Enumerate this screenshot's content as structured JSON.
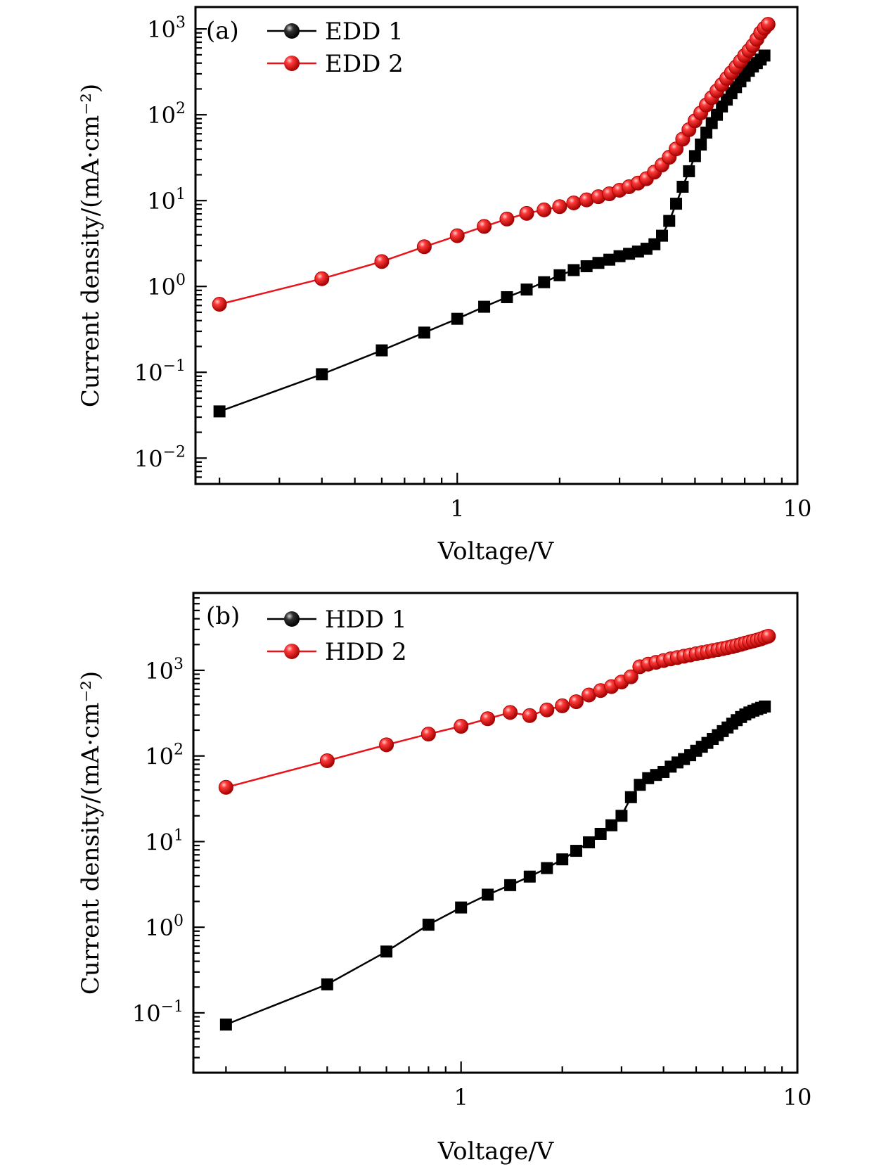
{
  "chart_data": [
    {
      "type": "line",
      "panel_label": "(a)",
      "xlabel": "Voltage/V",
      "ylabel": "Current density/(mA·cm⁻²)",
      "xscale": "log",
      "yscale": "log",
      "xlim": [
        0.17,
        10
      ],
      "ylim": [
        0.005,
        1800
      ],
      "x_ticks": [
        {
          "value": 1,
          "label": "1"
        },
        {
          "value": 10,
          "label": "10"
        }
      ],
      "y_ticks": [
        {
          "value": 0.01,
          "base": "10",
          "exp": "−2"
        },
        {
          "value": 0.1,
          "base": "10",
          "exp": "−1"
        },
        {
          "value": 1,
          "base": "10",
          "exp": "0"
        },
        {
          "value": 10,
          "base": "10",
          "exp": "1"
        },
        {
          "value": 100,
          "base": "10",
          "exp": "2"
        },
        {
          "value": 1000,
          "base": "10",
          "exp": "3"
        }
      ],
      "legend_position": "top-left",
      "series": [
        {
          "name": "EDD 1",
          "color": "#000000",
          "marker": "square",
          "points": [
            [
              0.2,
              0.035
            ],
            [
              0.4,
              0.095
            ],
            [
              0.6,
              0.18
            ],
            [
              0.8,
              0.29
            ],
            [
              1.0,
              0.42
            ],
            [
              1.2,
              0.58
            ],
            [
              1.4,
              0.75
            ],
            [
              1.6,
              0.92
            ],
            [
              1.8,
              1.12
            ],
            [
              2.0,
              1.35
            ],
            [
              2.2,
              1.55
            ],
            [
              2.4,
              1.72
            ],
            [
              2.6,
              1.88
            ],
            [
              2.8,
              2.05
            ],
            [
              3.0,
              2.25
            ],
            [
              3.2,
              2.4
            ],
            [
              3.4,
              2.55
            ],
            [
              3.6,
              2.75
            ],
            [
              3.8,
              3.1
            ],
            [
              4.0,
              3.9
            ],
            [
              4.2,
              5.8
            ],
            [
              4.4,
              9.2
            ],
            [
              4.6,
              14.5
            ],
            [
              4.8,
              22
            ],
            [
              5.0,
              33
            ],
            [
              5.2,
              45
            ],
            [
              5.4,
              62
            ],
            [
              5.6,
              80
            ],
            [
              5.8,
              100
            ],
            [
              6.0,
              125
            ],
            [
              6.2,
              150
            ],
            [
              6.4,
              178
            ],
            [
              6.6,
              210
            ],
            [
              6.8,
              245
            ],
            [
              7.0,
              285
            ],
            [
              7.2,
              325
            ],
            [
              7.4,
              365
            ],
            [
              7.6,
              400
            ],
            [
              7.8,
              440
            ],
            [
              8.0,
              490
            ]
          ]
        },
        {
          "name": "EDD 2",
          "color": "#e8141a",
          "marker": "circle",
          "points": [
            [
              0.2,
              0.62
            ],
            [
              0.4,
              1.23
            ],
            [
              0.6,
              1.95
            ],
            [
              0.8,
              2.9
            ],
            [
              1.0,
              3.9
            ],
            [
              1.2,
              5.0
            ],
            [
              1.4,
              6.1
            ],
            [
              1.6,
              7.1
            ],
            [
              1.8,
              7.8
            ],
            [
              2.0,
              8.5
            ],
            [
              2.2,
              9.4
            ],
            [
              2.4,
              10.2
            ],
            [
              2.6,
              11.1
            ],
            [
              2.8,
              12.0
            ],
            [
              3.0,
              13.2
            ],
            [
              3.2,
              14.5
            ],
            [
              3.4,
              16.0
            ],
            [
              3.6,
              18.0
            ],
            [
              3.8,
              21.5
            ],
            [
              4.0,
              26
            ],
            [
              4.2,
              32
            ],
            [
              4.4,
              40
            ],
            [
              4.6,
              52
            ],
            [
              4.8,
              67
            ],
            [
              5.0,
              85
            ],
            [
              5.2,
              105
            ],
            [
              5.4,
              130
            ],
            [
              5.6,
              158
            ],
            [
              5.8,
              190
            ],
            [
              6.0,
              225
            ],
            [
              6.2,
              265
            ],
            [
              6.4,
              310
            ],
            [
              6.6,
              360
            ],
            [
              6.8,
              420
            ],
            [
              7.0,
              490
            ],
            [
              7.2,
              560
            ],
            [
              7.4,
              640
            ],
            [
              7.6,
              760
            ],
            [
              7.8,
              900
            ],
            [
              8.0,
              1020
            ],
            [
              8.2,
              1130
            ]
          ]
        }
      ]
    },
    {
      "type": "line",
      "panel_label": "(b)",
      "xlabel": "Voltage/V",
      "ylabel": "Current density/(mA·cm⁻²)",
      "xscale": "log",
      "yscale": "log",
      "xlim": [
        0.16,
        10
      ],
      "ylim": [
        0.02,
        8000
      ],
      "x_ticks": [
        {
          "value": 1,
          "label": "1"
        },
        {
          "value": 10,
          "label": "10"
        }
      ],
      "y_ticks": [
        {
          "value": 0.1,
          "base": "10",
          "exp": "−1"
        },
        {
          "value": 1,
          "base": "10",
          "exp": "0"
        },
        {
          "value": 10,
          "base": "10",
          "exp": "1"
        },
        {
          "value": 100,
          "base": "10",
          "exp": "2"
        },
        {
          "value": 1000,
          "base": "10",
          "exp": "3"
        }
      ],
      "legend_position": "top-left",
      "series": [
        {
          "name": "HDD 1",
          "color": "#000000",
          "marker": "square",
          "points": [
            [
              0.2,
              0.073
            ],
            [
              0.4,
              0.215
            ],
            [
              0.6,
              0.52
            ],
            [
              0.8,
              1.07
            ],
            [
              1.0,
              1.7
            ],
            [
              1.2,
              2.4
            ],
            [
              1.4,
              3.1
            ],
            [
              1.6,
              3.9
            ],
            [
              1.8,
              4.9
            ],
            [
              2.0,
              6.2
            ],
            [
              2.2,
              7.8
            ],
            [
              2.4,
              9.8
            ],
            [
              2.6,
              12.3
            ],
            [
              2.8,
              15.5
            ],
            [
              3.0,
              20
            ],
            [
              3.2,
              33
            ],
            [
              3.4,
              46
            ],
            [
              3.6,
              55
            ],
            [
              3.8,
              60
            ],
            [
              4.0,
              65
            ],
            [
              4.2,
              75
            ],
            [
              4.4,
              84
            ],
            [
              4.6,
              92
            ],
            [
              4.8,
              102
            ],
            [
              5.0,
              115
            ],
            [
              5.2,
              128
            ],
            [
              5.4,
              142
            ],
            [
              5.6,
              158
            ],
            [
              5.8,
              175
            ],
            [
              6.0,
              195
            ],
            [
              6.2,
              215
            ],
            [
              6.4,
              238
            ],
            [
              6.6,
              262
            ],
            [
              6.8,
              285
            ],
            [
              7.0,
              305
            ],
            [
              7.2,
              322
            ],
            [
              7.4,
              338
            ],
            [
              7.6,
              352
            ],
            [
              7.8,
              365
            ],
            [
              8.0,
              378
            ]
          ]
        },
        {
          "name": "HDD 2",
          "color": "#e8141a",
          "marker": "circle",
          "points": [
            [
              0.2,
              43
            ],
            [
              0.4,
              88
            ],
            [
              0.6,
              135
            ],
            [
              0.8,
              180
            ],
            [
              1.0,
              222
            ],
            [
              1.2,
              272
            ],
            [
              1.4,
              322
            ],
            [
              1.6,
              296
            ],
            [
              1.8,
              345
            ],
            [
              2.0,
              385
            ],
            [
              2.2,
              430
            ],
            [
              2.4,
              515
            ],
            [
              2.6,
              580
            ],
            [
              2.8,
              645
            ],
            [
              3.0,
              730
            ],
            [
              3.2,
              840
            ],
            [
              3.4,
              1100
            ],
            [
              3.6,
              1180
            ],
            [
              3.8,
              1240
            ],
            [
              4.0,
              1300
            ],
            [
              4.2,
              1360
            ],
            [
              4.4,
              1410
            ],
            [
              4.6,
              1460
            ],
            [
              4.8,
              1510
            ],
            [
              5.0,
              1560
            ],
            [
              5.2,
              1610
            ],
            [
              5.4,
              1650
            ],
            [
              5.6,
              1700
            ],
            [
              5.8,
              1740
            ],
            [
              6.0,
              1790
            ],
            [
              6.2,
              1840
            ],
            [
              6.4,
              1890
            ],
            [
              6.6,
              1950
            ],
            [
              6.8,
              2010
            ],
            [
              7.0,
              2080
            ],
            [
              7.2,
              2140
            ],
            [
              7.4,
              2200
            ],
            [
              7.6,
              2260
            ],
            [
              7.8,
              2330
            ],
            [
              8.0,
              2420
            ],
            [
              8.2,
              2500
            ]
          ]
        }
      ]
    }
  ]
}
